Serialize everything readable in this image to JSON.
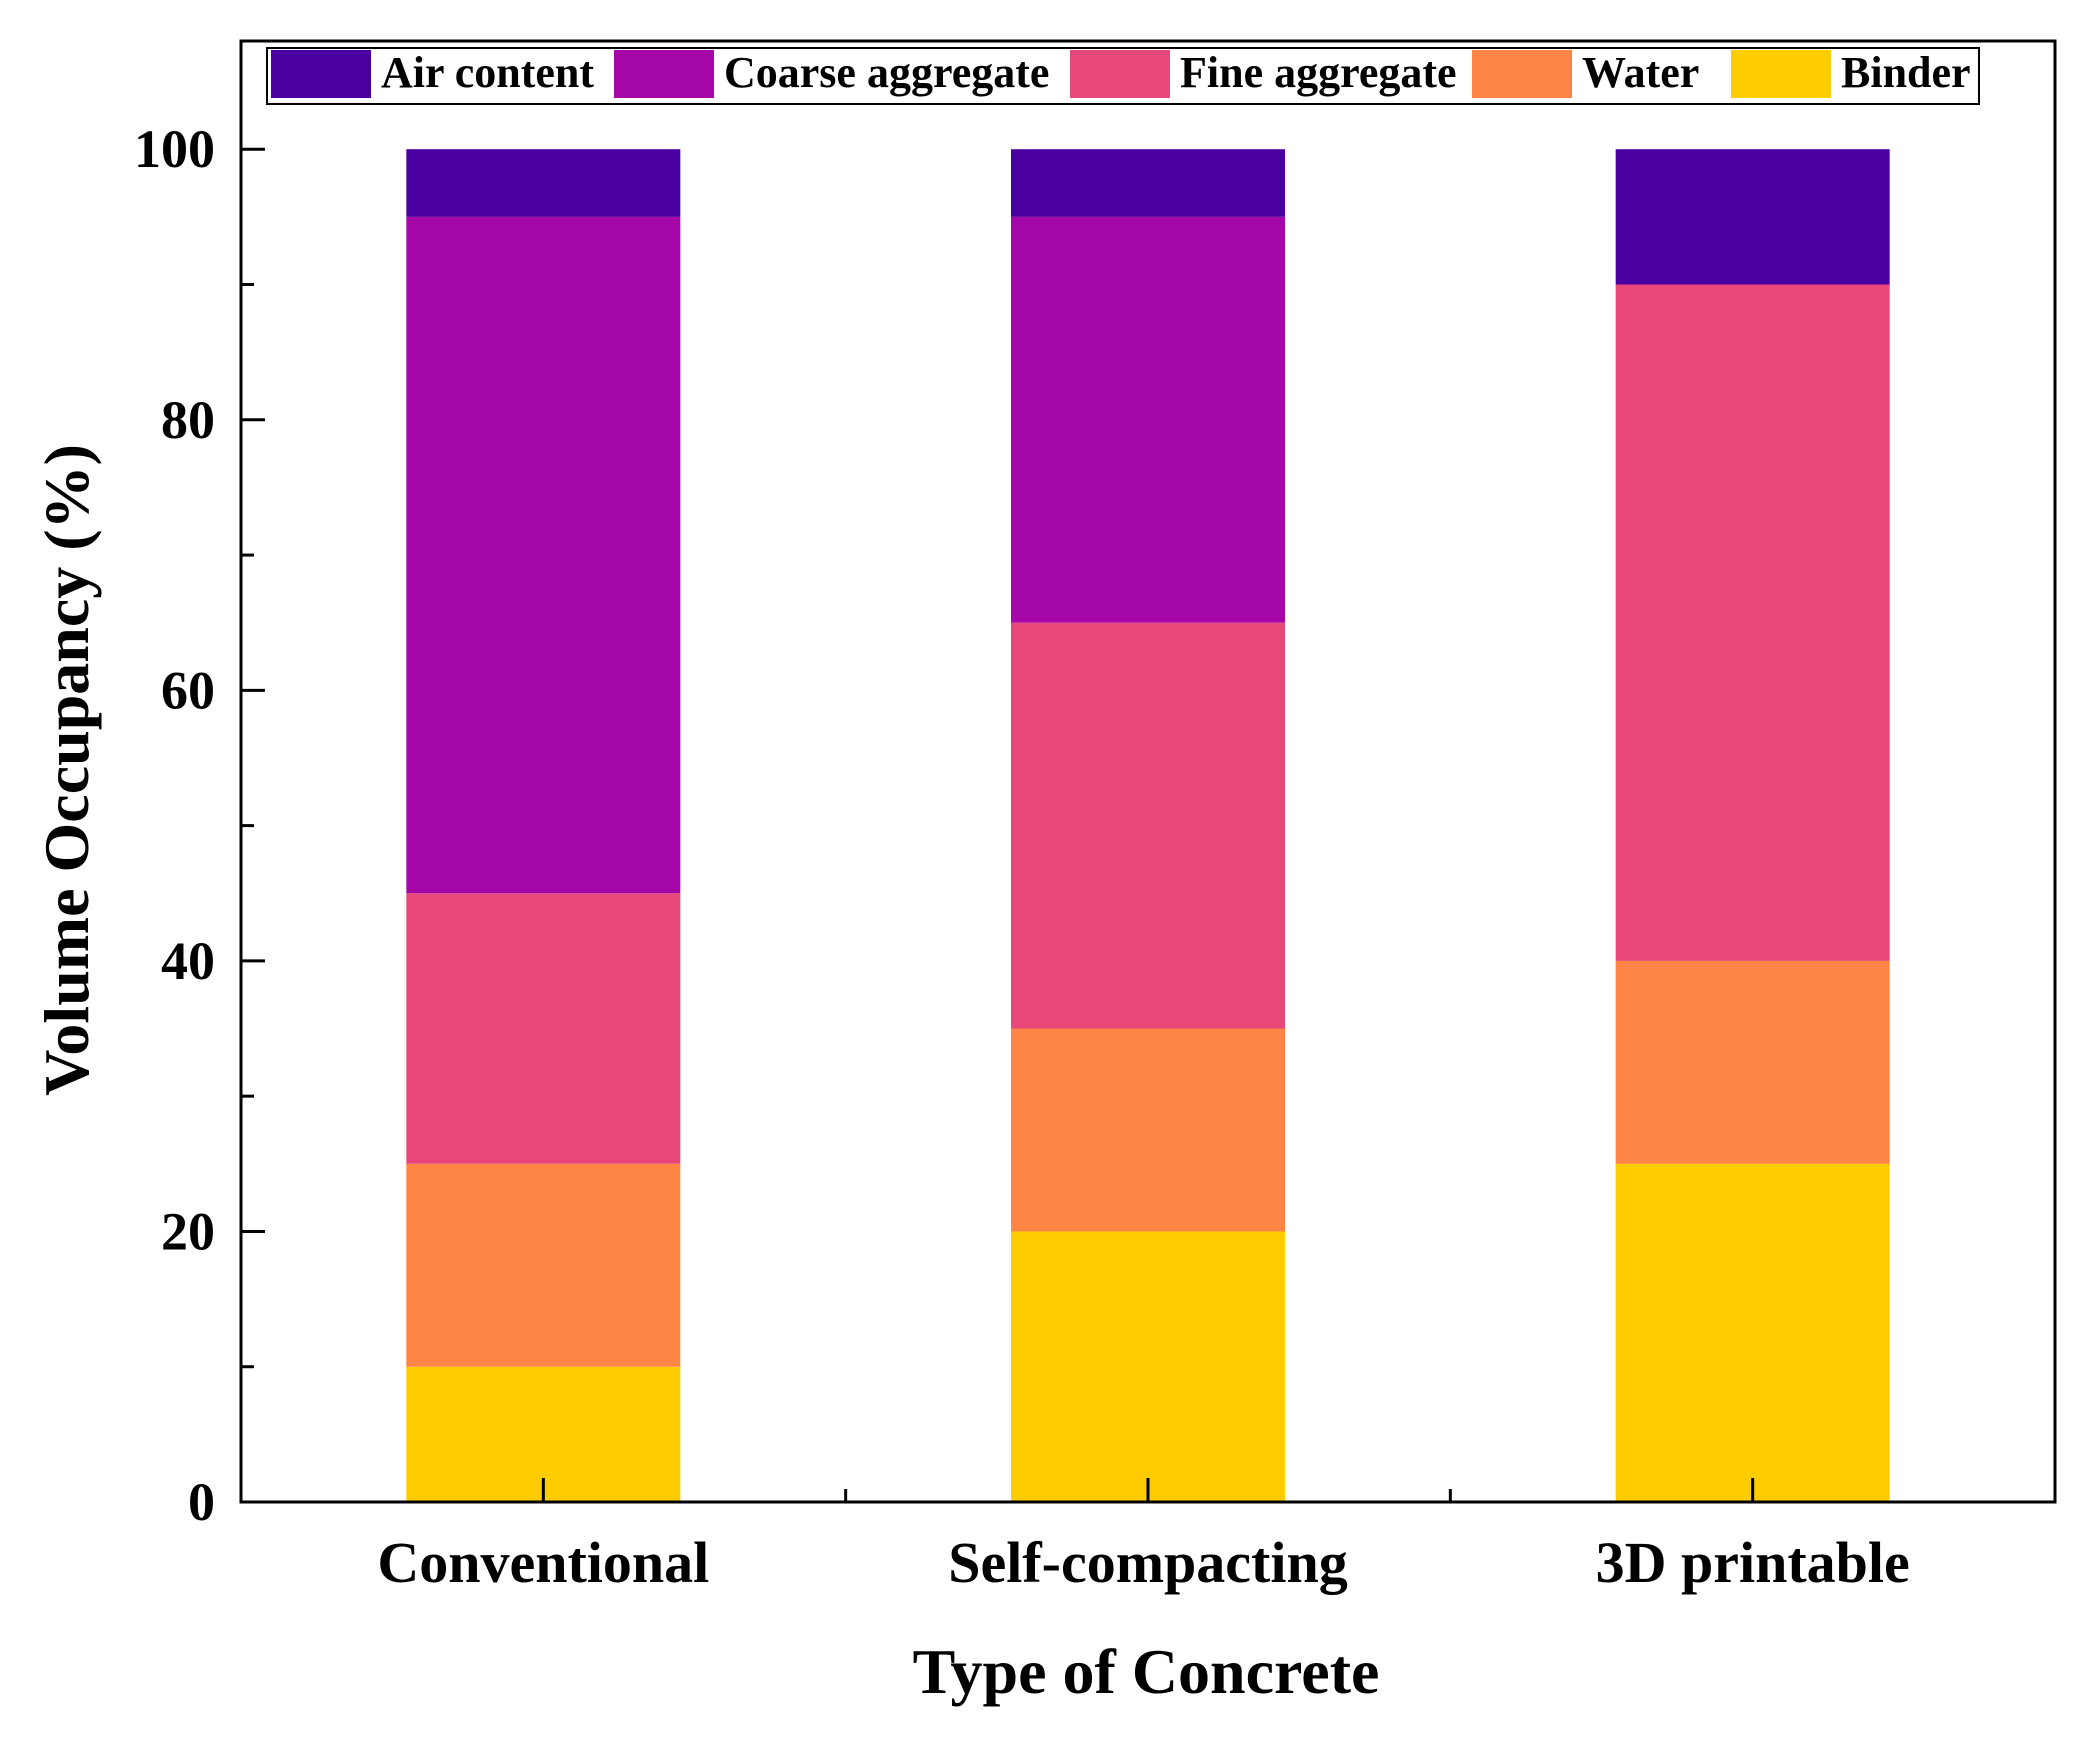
{
  "chart_data": {
    "type": "bar",
    "stacked": true,
    "title": "",
    "xlabel": "Type of Concrete",
    "ylabel": "Volume Occupancy (%)",
    "categories": [
      "Conventional",
      "Self-compacting",
      "3D printable"
    ],
    "ylim": [
      0,
      108
    ],
    "yticks": [
      0,
      20,
      40,
      60,
      80,
      100
    ],
    "grid": false,
    "legend_position": "top",
    "series": [
      {
        "name": "Binder",
        "color": "#FFCC00",
        "values": [
          10,
          20,
          25
        ]
      },
      {
        "name": "Water",
        "color": "#FF8547",
        "values": [
          15,
          15,
          15
        ]
      },
      {
        "name": "Fine aggregate",
        "color": "#E8477A",
        "values": [
          20,
          30,
          50
        ]
      },
      {
        "name": "Coarse aggregate",
        "color": "#A406A8",
        "values": [
          50,
          30,
          0
        ]
      },
      {
        "name": "Air content",
        "color": "#4A00A0",
        "values": [
          5,
          5,
          10
        ]
      }
    ],
    "legend_order": [
      "Air content",
      "Coarse aggregate",
      "Fine aggregate",
      "Water",
      "Binder"
    ]
  }
}
